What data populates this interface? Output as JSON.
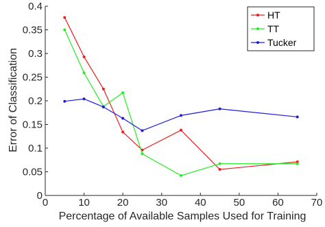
{
  "chart_data": {
    "type": "line",
    "title": "",
    "xlabel": "Percentage of Available Samples Used for Training",
    "ylabel": "Error of Classification",
    "xlim": [
      0,
      70
    ],
    "ylim": [
      0,
      0.4
    ],
    "xticks": [
      0,
      10,
      20,
      30,
      40,
      50,
      60,
      70
    ],
    "yticks": [
      0,
      0.05,
      0.1,
      0.15,
      0.2,
      0.25,
      0.3,
      0.35,
      0.4
    ],
    "xtick_labels": [
      "0",
      "10",
      "20",
      "30",
      "40",
      "50",
      "60",
      "70"
    ],
    "ytick_labels": [
      "0",
      "0.05",
      "0.1",
      "0.15",
      "0.2",
      "0.25",
      "0.3",
      "0.35",
      "0.4"
    ],
    "grid": false,
    "legend_position": "top-right",
    "x": [
      5,
      10,
      15,
      20,
      25,
      35,
      45,
      65
    ],
    "series": [
      {
        "name": "HT",
        "color": "#ee1c1c",
        "values": [
          0.376,
          0.293,
          0.225,
          0.134,
          0.096,
          0.138,
          0.055,
          0.071
        ]
      },
      {
        "name": "TT",
        "color": "#22ee22",
        "values": [
          0.35,
          0.259,
          0.188,
          0.217,
          0.088,
          0.042,
          0.067,
          0.067
        ]
      },
      {
        "name": "Tucker",
        "color": "#1c1ce0",
        "values": [
          0.199,
          0.204,
          0.187,
          0.163,
          0.137,
          0.169,
          0.183,
          0.166
        ]
      }
    ]
  }
}
